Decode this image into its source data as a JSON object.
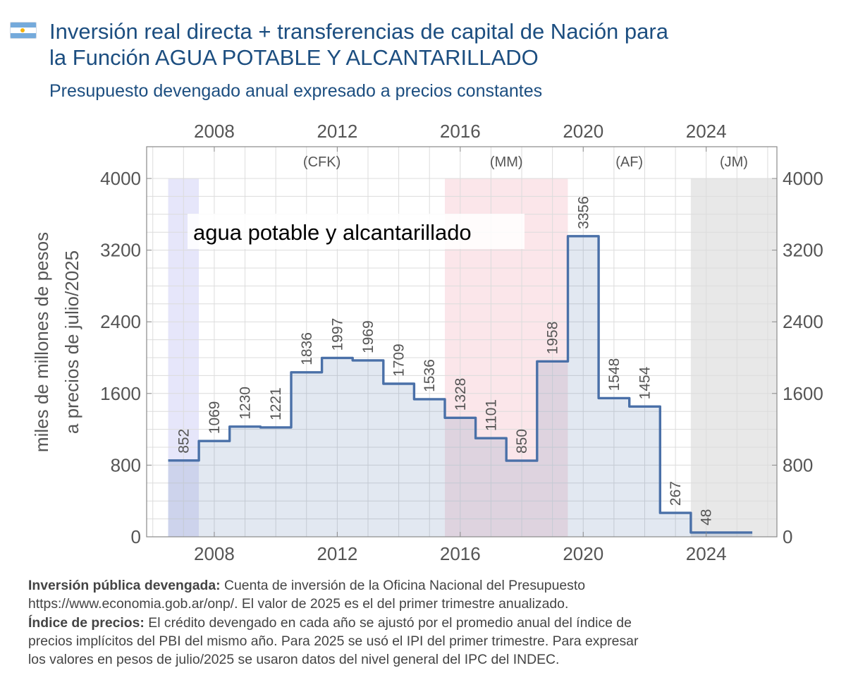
{
  "header": {
    "title_line1": "Inversión real directa + transferencias de capital de Nación para",
    "title_line2": "la Función AGUA POTABLE Y ALCANTARILLADO",
    "subtitle": "Presupuesto devengado anual expresado a precios constantes"
  },
  "colors": {
    "title": "#1c4e80",
    "line": "#4a70a8",
    "area_fill": "#dce3ef",
    "period_2007": "#e6e6fa",
    "period_MM": "#fbe6ea",
    "period_JM": "#e8e8e8",
    "grid": "#dcdcdc",
    "text": "#555555"
  },
  "chart_data": {
    "type": "line",
    "step": true,
    "annotation": "agua potable y alcantarillado",
    "ylabel_line1": "miles de millones de pesos",
    "ylabel_line2": "a precios de julio/2025",
    "xlim": [
      2005.8,
      2026.3
    ],
    "ylim": [
      0,
      4000
    ],
    "x_ticks": [
      2008,
      2012,
      2016,
      2020,
      2024
    ],
    "y_ticks": [
      0,
      800,
      1600,
      2400,
      3200,
      4000
    ],
    "grid": true,
    "series": [
      {
        "x": [
          2007,
          2008,
          2009,
          2010,
          2011,
          2012,
          2013,
          2014,
          2015,
          2016,
          2017,
          2018,
          2019,
          2020,
          2021,
          2022,
          2023,
          2024,
          2025
        ],
        "values": [
          852,
          1069,
          1230,
          1221,
          1836,
          1997,
          1969,
          1709,
          1536,
          1328,
          1101,
          850,
          1958,
          3356,
          1548,
          1454,
          267,
          48,
          null
        ],
        "labels": [
          "852",
          "1069",
          "1230",
          "1221",
          "1836",
          "1997",
          "1969",
          "1709",
          "1536",
          "1328",
          "1101",
          "850",
          "1958",
          "3356",
          "1548",
          "1454",
          "267",
          "48"
        ]
      }
    ],
    "periods": [
      {
        "label": "",
        "from": 2006.5,
        "to": 2007.5,
        "color": "#e6e6fa"
      },
      {
        "label": "(CFK)",
        "from": 2007.5,
        "to": 2015.5,
        "color": "#ffffff"
      },
      {
        "label": "(MM)",
        "from": 2015.5,
        "to": 2019.5,
        "color": "#fbe6ea"
      },
      {
        "label": "(AF)",
        "from": 2019.5,
        "to": 2023.5,
        "color": "#ffffff"
      },
      {
        "label": "(JM)",
        "from": 2023.5,
        "to": 2026.3,
        "color": "#e8e8e8"
      }
    ]
  },
  "notes": {
    "line1_bold": "Inversión pública devengada:",
    "line1_text": " Cuenta de inversión de la Oficina Nacional del Presupuesto",
    "line2_text": "https://www.economia.gob.ar/onp/. El valor de 2025 es el del primer trimestre anualizado.",
    "line3_bold": "Índice de precios:",
    "line3_text": " El crédito devengado en cada año se ajustó por el promedio anual del índice de",
    "line4_text": "precios implícitos del PBI del mismo año. Para 2025 se usó el IPI del primer trimestre. Para expresar",
    "line5_text": "los valores en pesos de julio/2025 se usaron datos del nivel general del IPC del INDEC."
  }
}
